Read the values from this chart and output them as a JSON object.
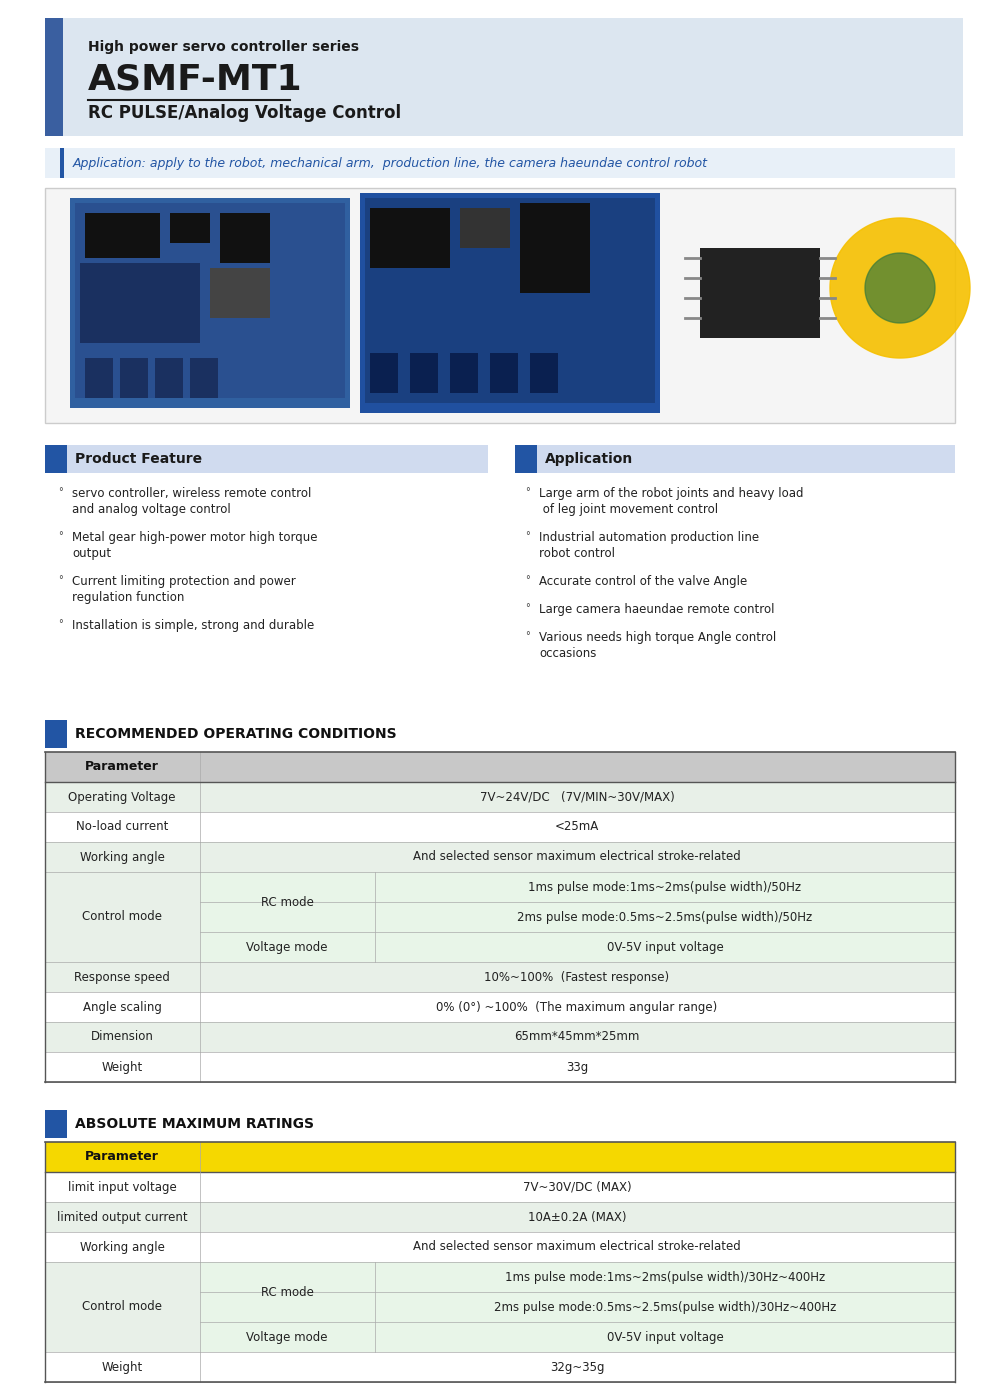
{
  "bg_color": "#ffffff",
  "title_series": "High power servo controller series",
  "title_main": "ASMF-MT1",
  "title_sub": "RC PULSE/Analog Voltage Control",
  "application_text": "Application: apply to the robot, mechanical arm,  production line, the camera haeundae control robot",
  "accent_blue": "#2255a4",
  "header_light_blue": "#dce6f0",
  "header_dark_blue": "#3a5fa0",
  "section_header_bg": "#d0dbef",
  "feature_title": "Product Feature",
  "feature_items": [
    [
      "servo controller, wireless remote control",
      "and analog voltage control"
    ],
    [
      "Metal gear high-power motor high torque",
      "output"
    ],
    [
      "Current limiting protection and power",
      "regulation function"
    ],
    [
      "Installation is simple, strong and durable"
    ]
  ],
  "app_title": "Application",
  "app_items": [
    [
      "Large arm of the robot joints and heavy load",
      " of leg joint movement control"
    ],
    [
      "Industrial automation production line",
      "robot control"
    ],
    [
      "Accurate control of the valve Angle"
    ],
    [
      "Large camera haeundae remote control"
    ],
    [
      "Various needs high torque Angle control",
      "occasions"
    ]
  ],
  "rec_title": "RECOMMENDED OPERATING CONDITIONS",
  "table_border": "#aaaaaa",
  "table_header_bg": "#c8c8c8",
  "table_alt_bg": "#e8f0e8",
  "table_white": "#ffffff",
  "table_green_light": "#e8f5e8",
  "rec_rows": [
    {
      "type": "header",
      "param": "Parameter"
    },
    {
      "type": "simple",
      "param": "Operating Voltage",
      "val": "7V~24V/DC   (7V/MIN~30V/MAX)",
      "alt": true
    },
    {
      "type": "simple",
      "param": "No-load current",
      "val": "<25mA",
      "alt": false
    },
    {
      "type": "simple",
      "param": "Working angle",
      "val": "And selected sensor maximum electrical stroke-related",
      "alt": true
    },
    {
      "type": "control",
      "param": "Control mode",
      "rc_rows": [
        "1ms pulse mode:1ms~2ms(pulse width)/50Hz",
        "2ms pulse mode:0.5ms~2.5ms(pulse width)/50Hz"
      ],
      "vm_row": "0V-5V input voltage"
    },
    {
      "type": "simple",
      "param": "Response speed",
      "val": "10%~100%  (Fastest response)",
      "alt": true
    },
    {
      "type": "simple",
      "param": "Angle scaling",
      "val": "0% (0°) ~100%  (The maximum angular range)",
      "alt": false
    },
    {
      "type": "simple",
      "param": "Dimension",
      "val": "65mm*45mm*25mm",
      "alt": true
    },
    {
      "type": "simple",
      "param": "Weight",
      "val": "33g",
      "alt": false
    }
  ],
  "abs_title": "ABSOLUTE MAXIMUM RATINGS",
  "abs_header_bg": "#f5d800",
  "abs_rows": [
    {
      "type": "header",
      "param": "Parameter"
    },
    {
      "type": "simple",
      "param": "limit input voltage",
      "val": "7V~30V/DC (MAX)",
      "alt": false
    },
    {
      "type": "simple",
      "param": "limited output current",
      "val": "10A±0.2A (MAX)",
      "alt": true
    },
    {
      "type": "simple",
      "param": "Working angle",
      "val": "And selected sensor maximum electrical stroke-related",
      "alt": false
    },
    {
      "type": "control",
      "param": "Control mode",
      "rc_rows": [
        "1ms pulse mode:1ms~2ms(pulse width)/30Hz~400Hz",
        "2ms pulse mode:0.5ms~2.5ms(pulse width)/30Hz~400Hz"
      ],
      "vm_row": "0V-5V input voltage"
    },
    {
      "type": "simple",
      "param": "Weight",
      "val": "32g~35g",
      "alt": false
    }
  ]
}
